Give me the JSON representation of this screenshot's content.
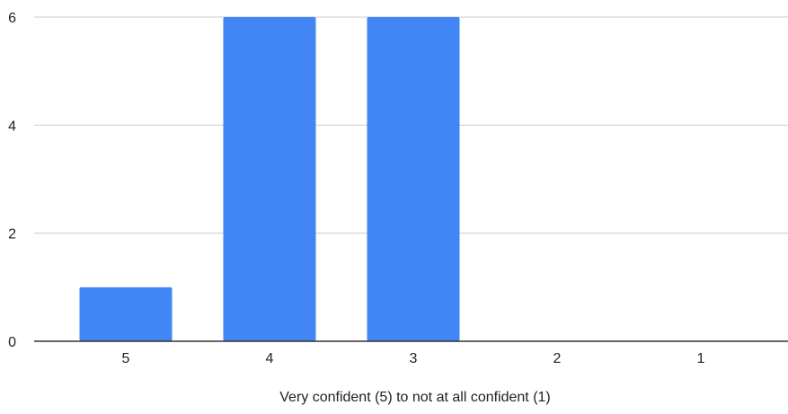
{
  "chart_data": {
    "type": "bar",
    "categories": [
      "5",
      "4",
      "3",
      "2",
      "1"
    ],
    "values": [
      1,
      6,
      6,
      0,
      0
    ],
    "title": "",
    "xlabel": "Very confident (5) to not at all confident (1)",
    "ylabel": "",
    "ylim": [
      0,
      6
    ],
    "yticks": [
      0,
      2,
      4,
      6
    ],
    "grid": true,
    "legend": "none",
    "colors": {
      "bar": "#4285f4",
      "grid": "#cccccc",
      "axis": "#333333",
      "text": "#222222"
    }
  }
}
